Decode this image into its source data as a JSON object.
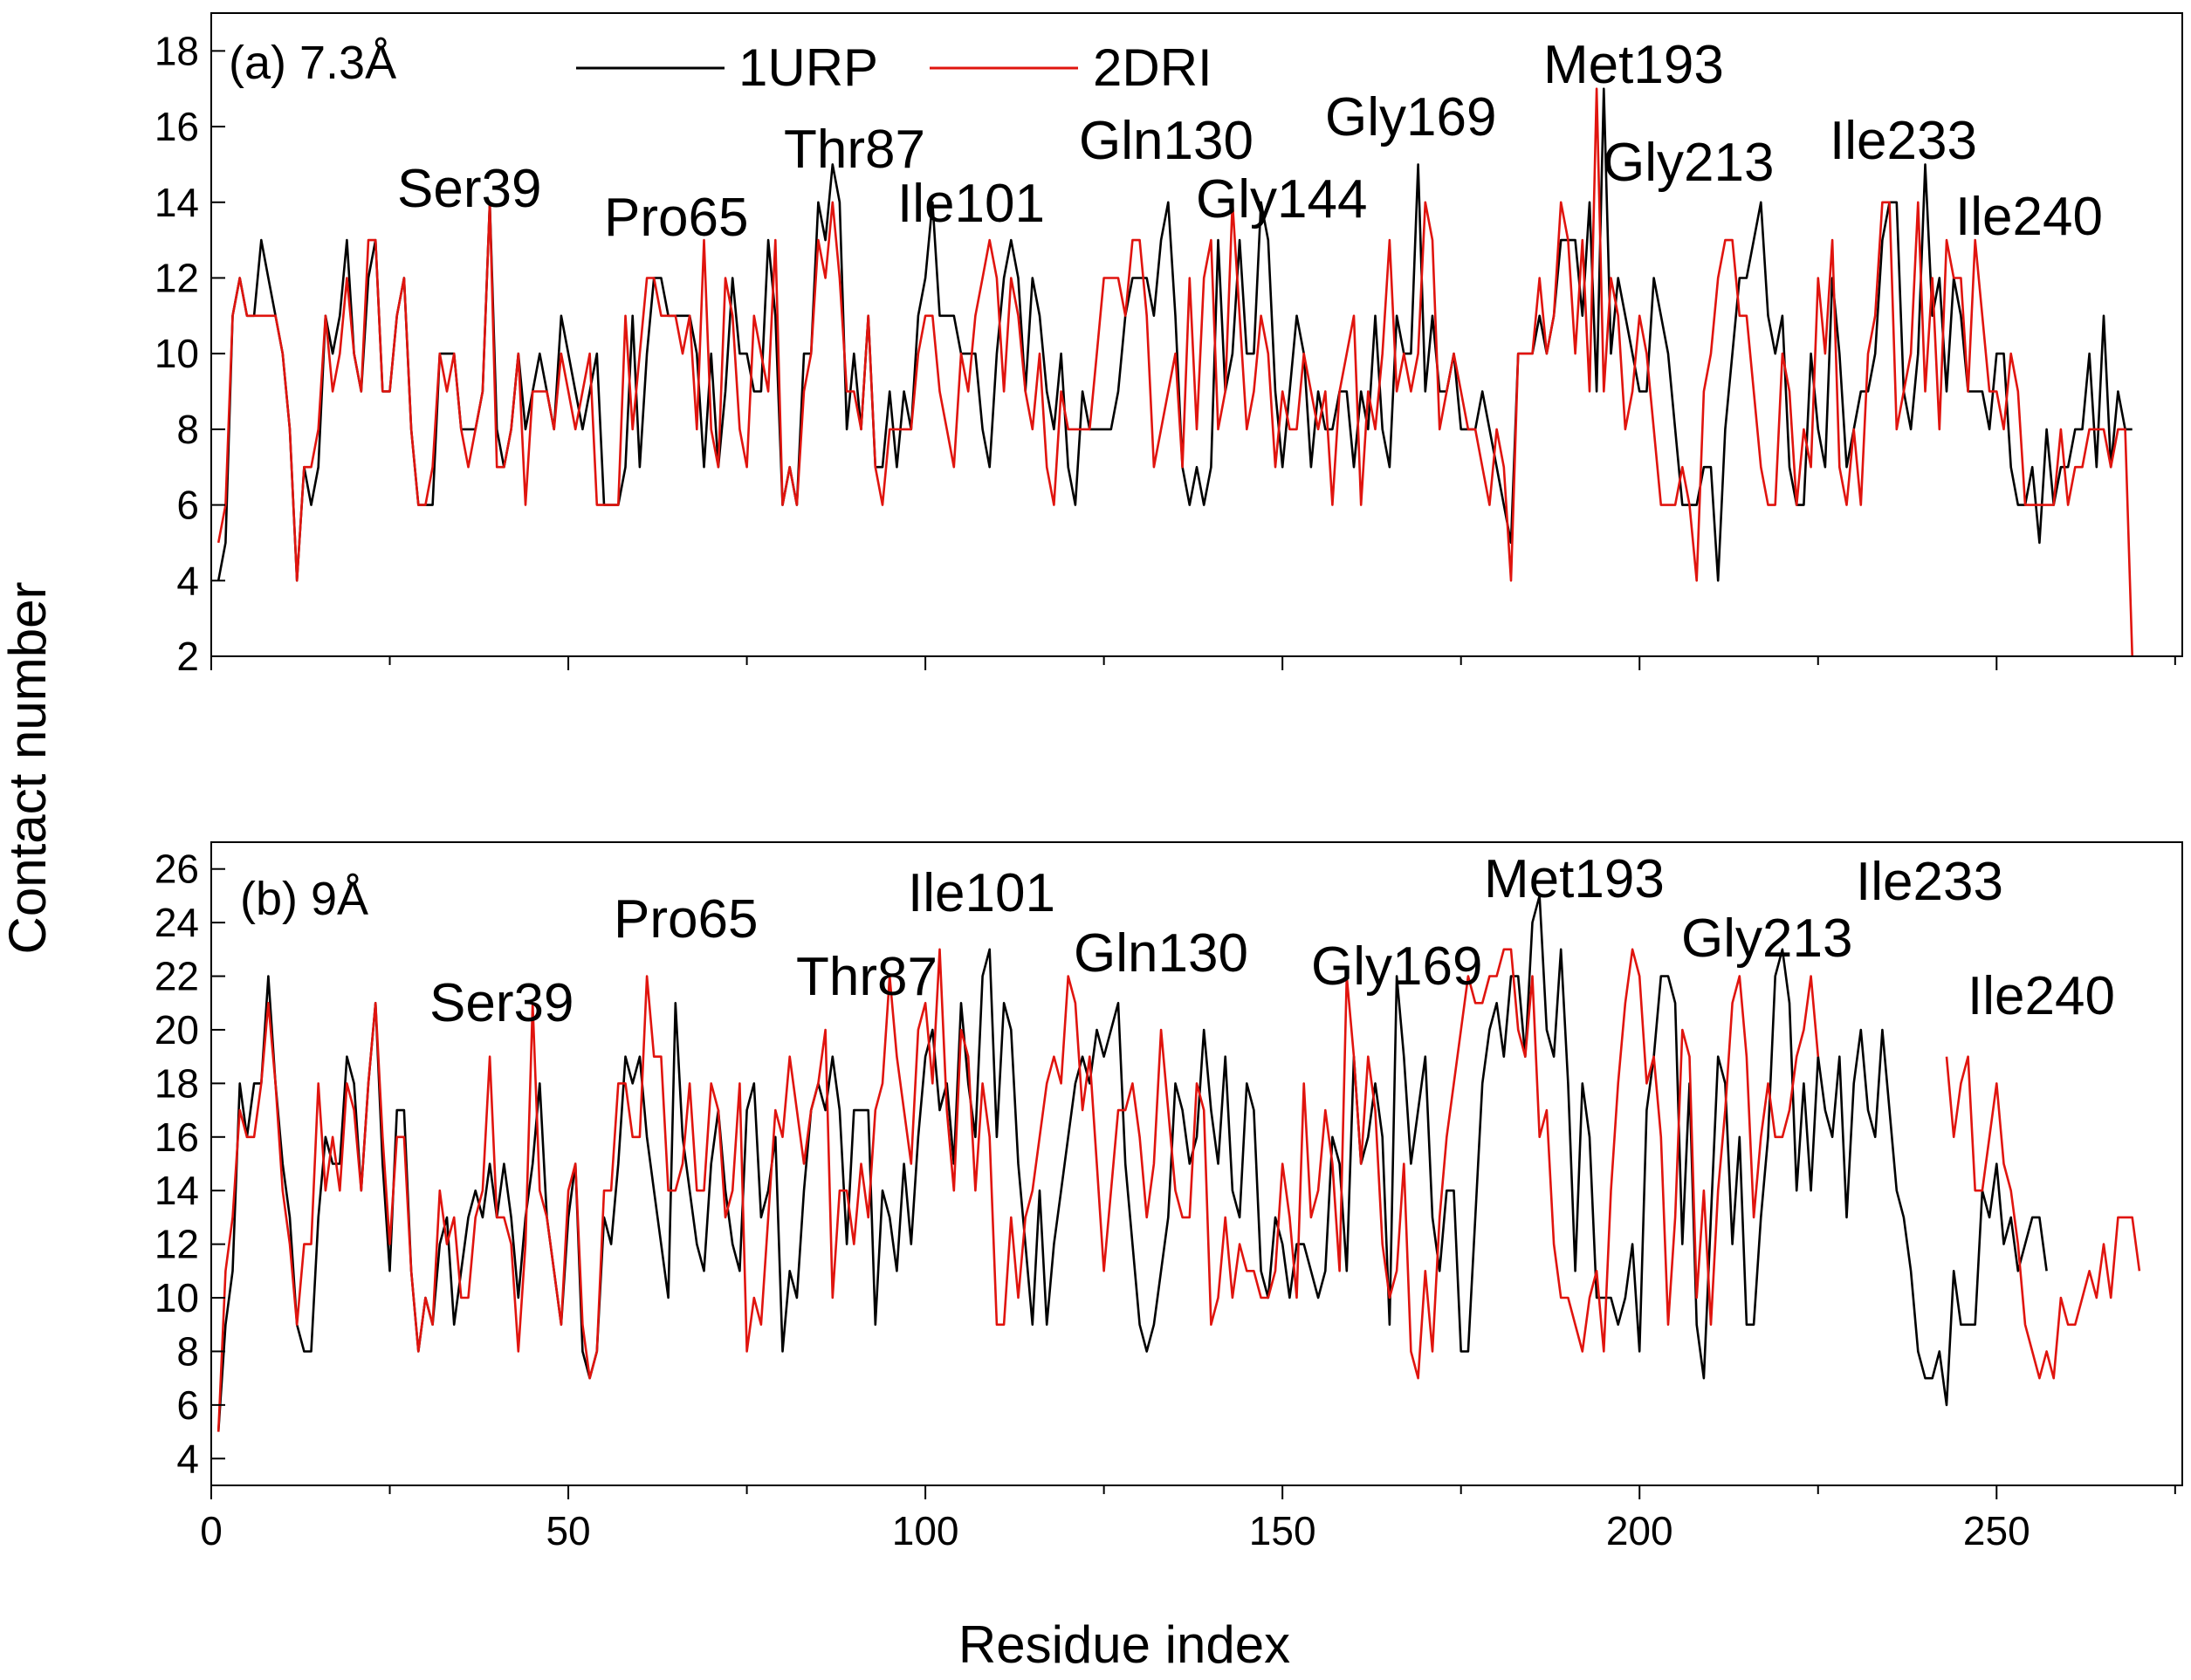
{
  "chart_data": [
    {
      "type": "line",
      "panel_label": "(a) 7.3Å",
      "xlabel": "",
      "ylabel": "Contact number",
      "xlim": [
        0,
        276
      ],
      "ylim": [
        2,
        19
      ],
      "xticks": [
        0,
        50,
        100,
        150,
        200,
        250
      ],
      "yticks": [
        2,
        4,
        6,
        8,
        10,
        12,
        14,
        16,
        18
      ],
      "x_tick_labels_visible": false,
      "legend": [
        "1URP",
        "2DRI"
      ],
      "legend_position": "top-center",
      "series": [
        {
          "name": "1URP",
          "color": "#000000",
          "x_start": 1,
          "values": [
            4,
            5,
            11,
            12,
            11,
            11,
            13,
            12,
            11,
            10,
            8,
            4,
            7,
            6,
            7,
            11,
            10,
            11,
            13,
            10,
            9,
            12,
            13,
            9,
            9,
            11,
            12,
            8,
            6,
            6,
            6,
            10,
            10,
            10,
            8,
            8,
            8,
            9,
            14,
            8,
            7,
            8,
            10,
            8,
            9,
            10,
            9,
            8,
            11,
            10,
            9,
            8,
            9,
            10,
            6,
            6,
            6,
            7,
            11,
            7,
            10,
            12,
            12,
            11,
            11,
            11,
            11,
            10,
            7,
            10,
            7,
            9,
            12,
            10,
            10,
            9,
            9,
            13,
            11,
            6,
            7,
            6,
            10,
            10,
            14,
            13,
            15,
            14,
            8,
            10,
            8,
            11,
            7,
            7,
            9,
            7,
            9,
            8,
            11,
            12,
            14,
            11,
            11,
            11,
            10,
            10,
            10,
            8,
            7,
            10,
            12,
            13,
            12,
            9,
            12,
            11,
            9,
            8,
            10,
            7,
            6,
            9,
            8,
            8,
            8,
            8,
            9,
            11,
            12,
            12,
            12,
            11,
            13,
            14,
            11,
            7,
            6,
            7,
            6,
            7,
            13,
            9,
            10,
            13,
            10,
            10,
            14,
            13,
            9,
            7,
            9,
            11,
            10,
            7,
            9,
            8,
            8,
            9,
            9,
            7,
            9,
            8,
            11,
            8,
            7,
            11,
            10,
            10,
            15,
            9,
            11,
            9,
            9,
            10,
            8,
            8,
            8,
            9,
            8,
            7,
            6,
            5,
            10,
            10,
            10,
            11,
            10,
            11,
            13,
            13,
            13,
            11,
            14,
            9,
            17,
            10,
            12,
            11,
            10,
            9,
            9,
            12,
            11,
            10,
            8,
            6,
            6,
            6,
            7,
            7,
            4,
            8,
            10,
            12,
            12,
            13,
            14,
            11,
            10,
            11,
            7,
            6,
            6,
            10,
            8,
            7,
            12,
            10,
            7,
            8,
            9,
            9,
            10,
            13,
            14,
            14,
            9,
            8,
            10,
            15,
            11,
            12,
            9,
            12,
            11,
            9,
            9,
            9,
            8,
            10,
            10,
            7,
            6,
            6,
            7,
            5,
            8,
            6,
            7,
            7,
            8,
            8,
            10,
            7,
            11,
            7,
            9,
            8,
            8
          ]
        },
        {
          "name": "2DRI",
          "color": "#e0140e",
          "x_start": 1,
          "values": [
            5,
            6,
            11,
            12,
            11,
            11,
            11,
            11,
            11,
            10,
            8,
            4,
            7,
            7,
            8,
            11,
            9,
            10,
            12,
            10,
            9,
            13,
            13,
            9,
            9,
            11,
            12,
            8,
            6,
            6,
            7,
            10,
            9,
            10,
            8,
            7,
            8,
            9,
            14,
            7,
            7,
            8,
            10,
            6,
            9,
            9,
            9,
            8,
            10,
            9,
            8,
            9,
            10,
            6,
            6,
            6,
            6,
            11,
            8,
            10,
            12,
            12,
            11,
            11,
            11,
            10,
            11,
            8,
            13,
            8,
            7,
            12,
            11,
            8,
            7,
            11,
            10,
            9,
            13,
            6,
            7,
            6,
            9,
            10,
            13,
            12,
            14,
            12,
            9,
            9,
            8,
            11,
            7,
            6,
            8,
            8,
            8,
            8,
            10,
            11,
            11,
            9,
            8,
            7,
            10,
            9,
            11,
            12,
            13,
            12,
            9,
            12,
            11,
            9,
            8,
            10,
            7,
            6,
            9,
            8,
            8,
            8,
            8,
            10,
            12,
            12,
            12,
            11,
            13,
            13,
            11,
            7,
            8,
            9,
            10,
            7,
            12,
            8,
            12,
            13,
            8,
            9,
            14,
            11,
            8,
            9,
            11,
            10,
            7,
            9,
            8,
            8,
            10,
            9,
            8,
            9,
            6,
            9,
            10,
            11,
            6,
            9,
            8,
            10,
            13,
            9,
            10,
            9,
            10,
            14,
            13,
            8,
            9,
            10,
            9,
            8,
            8,
            7,
            6,
            8,
            7,
            4,
            10,
            10,
            10,
            12,
            10,
            11,
            14,
            13,
            10,
            13,
            9,
            17,
            9,
            12,
            11,
            8,
            9,
            11,
            10,
            8,
            6,
            6,
            6,
            7,
            6,
            4,
            9,
            10,
            12,
            13,
            13,
            11,
            11,
            9,
            7,
            6,
            6,
            10,
            9,
            6,
            8,
            7,
            12,
            10,
            13,
            7,
            6,
            8,
            6,
            10,
            11,
            14,
            14,
            8,
            9,
            10,
            14,
            9,
            12,
            8,
            13,
            12,
            12,
            9,
            13,
            11,
            9,
            9,
            8,
            10,
            9,
            6,
            6,
            6,
            6,
            6,
            8,
            6,
            7,
            7,
            8,
            8,
            8,
            7,
            8,
            8,
            2
          ]
        }
      ],
      "annotations": [
        "Ser39",
        "Pro65",
        "Thr87",
        "Ile101",
        "Gln130",
        "Gly144",
        "Gly169",
        "Met193",
        "Gly213",
        "Ile233",
        "Ile240"
      ]
    },
    {
      "type": "line",
      "panel_label": "(b) 9Å",
      "xlabel": "Residue index",
      "ylabel": "Contact number",
      "xlim": [
        0,
        276
      ],
      "ylim": [
        3,
        27
      ],
      "xticks": [
        0,
        50,
        100,
        150,
        200,
        250
      ],
      "yticks": [
        4,
        6,
        8,
        10,
        12,
        14,
        16,
        18,
        20,
        22,
        24,
        26
      ],
      "x_tick_labels_visible": true,
      "series": [
        {
          "name": "1URP",
          "color": "#000000",
          "x_start": 1,
          "values": [
            5,
            9,
            11,
            18,
            16,
            18,
            18,
            22,
            18,
            15,
            13,
            9,
            8,
            8,
            13,
            16,
            15,
            15,
            19,
            18,
            14,
            18,
            21,
            15,
            11,
            17,
            17,
            11,
            8,
            10,
            9,
            12,
            13,
            9,
            11,
            13,
            14,
            13,
            15,
            13,
            15,
            13,
            10,
            13,
            15,
            18,
            13,
            11,
            9,
            13,
            15,
            8,
            7,
            8,
            13,
            12,
            15,
            19,
            18,
            19,
            16,
            14,
            12,
            10,
            21,
            16,
            14,
            12,
            11,
            15,
            17,
            14,
            12,
            11,
            17,
            18,
            13,
            14,
            16,
            8,
            11,
            10,
            14,
            17,
            18,
            17,
            19,
            17,
            12,
            17,
            17,
            17,
            9,
            14,
            13,
            11,
            15,
            12,
            16,
            19,
            20,
            17,
            18,
            15,
            21,
            18,
            16,
            22,
            23,
            16,
            21,
            20,
            15,
            12,
            9,
            14,
            9,
            12,
            14,
            16,
            18,
            19,
            18,
            20,
            19,
            20,
            21,
            15,
            12,
            9,
            8,
            9,
            11,
            13,
            18,
            17,
            15,
            16,
            20,
            17,
            15,
            19,
            14,
            13,
            18,
            17,
            11,
            10,
            13,
            12,
            10,
            12,
            12,
            11,
            10,
            11,
            16,
            15,
            11,
            19,
            15,
            16,
            18,
            16,
            9,
            22,
            19,
            15,
            17,
            19,
            13,
            11,
            14,
            14,
            8,
            8,
            13,
            18,
            20,
            21,
            19,
            22,
            22,
            19,
            24,
            25,
            20,
            19,
            23,
            18,
            11,
            18,
            16,
            10,
            10,
            10,
            9,
            10,
            12,
            8,
            17,
            19,
            22,
            22,
            21,
            12,
            18,
            9,
            7,
            13,
            19,
            18,
            12,
            16,
            9,
            9,
            13,
            16,
            22,
            23,
            21,
            14,
            18,
            14,
            19,
            17,
            16,
            19,
            13,
            18,
            20,
            17,
            16,
            20,
            17,
            14,
            13,
            11,
            8,
            7,
            7,
            8,
            6,
            11,
            9,
            9,
            9,
            14,
            13,
            15,
            12,
            13,
            11,
            12,
            13,
            13,
            11
          ]
        },
        {
          "name": "2DRI",
          "color": "#e0140e",
          "x_start": 1,
          "values": [
            5,
            11,
            13,
            17,
            16,
            16,
            18,
            21,
            18,
            14,
            12,
            9,
            12,
            12,
            18,
            14,
            16,
            14,
            18,
            17,
            14,
            18,
            21,
            16,
            12,
            16,
            16,
            11,
            8,
            10,
            9,
            14,
            12,
            13,
            10,
            10,
            13,
            14,
            19,
            13,
            13,
            12,
            8,
            12,
            21,
            14,
            13,
            11,
            9,
            14,
            15,
            9,
            7,
            8,
            14,
            14,
            18,
            18,
            16,
            16,
            22,
            19,
            19,
            14,
            14,
            15,
            18,
            14,
            14,
            18,
            17,
            13,
            14,
            18,
            8,
            10,
            9,
            13,
            17,
            16,
            19,
            17,
            15,
            17,
            18,
            20,
            10,
            14,
            14,
            12,
            15,
            13,
            17,
            18,
            22,
            19,
            17,
            15,
            20,
            21,
            18,
            23,
            17,
            14,
            20,
            19,
            14,
            18,
            16,
            9,
            9,
            13,
            10,
            13,
            14,
            16,
            18,
            19,
            18,
            22,
            21,
            17,
            19,
            15,
            11,
            14,
            17,
            17,
            18,
            16,
            13,
            15,
            20,
            17,
            14,
            13,
            13,
            18,
            17,
            9,
            10,
            13,
            10,
            12,
            11,
            11,
            10,
            10,
            11,
            15,
            13,
            10,
            18,
            13,
            14,
            17,
            15,
            11,
            22,
            19,
            15,
            19,
            17,
            12,
            10,
            11,
            15,
            8,
            7,
            11,
            8,
            13,
            16,
            18,
            20,
            22,
            21,
            21,
            22,
            22,
            23,
            23,
            20,
            19,
            22,
            16,
            17,
            12,
            10,
            10,
            9,
            8,
            10,
            11,
            8,
            14,
            18,
            21,
            23,
            22,
            18,
            19,
            16,
            9,
            13,
            20,
            19,
            10,
            14,
            9,
            14,
            17,
            21,
            22,
            19,
            13,
            16,
            18,
            16,
            16,
            17,
            19,
            20,
            22,
            19
          ]
        },
        {
          "name": "2DRI",
          "color": "#e0140e",
          "x_start": 243,
          "values": [
            19,
            16,
            18,
            19,
            14,
            14,
            16,
            18,
            15,
            14,
            12,
            9,
            8,
            7,
            8,
            7,
            10,
            9,
            9,
            10,
            11,
            10,
            12,
            10,
            13,
            13,
            13,
            11
          ]
        }
      ],
      "annotations": [
        "Ser39",
        "Pro65",
        "Thr87",
        "Ile101",
        "Gln130",
        "Gly169",
        "Met193",
        "Gly213",
        "Ile233",
        "Ile240"
      ]
    }
  ]
}
